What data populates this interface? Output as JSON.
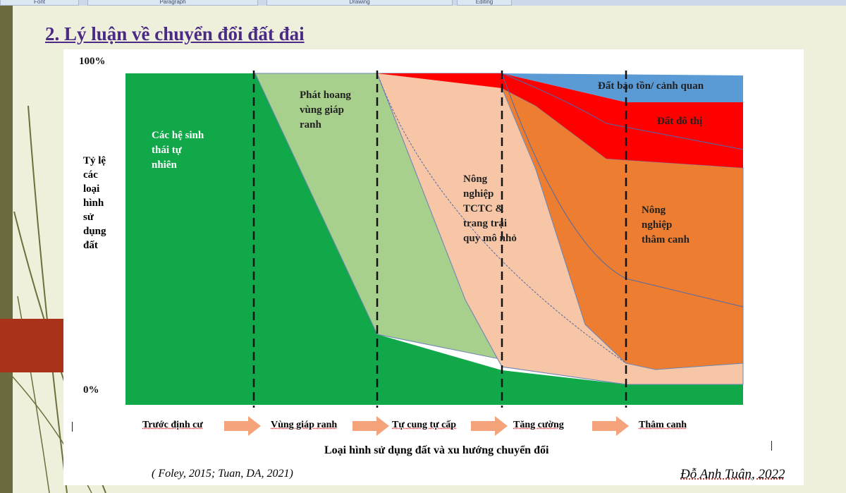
{
  "ribbon": {
    "groups": [
      "Font",
      "Paragraph",
      "Drawing",
      "Editing"
    ]
  },
  "slide": {
    "title": "2. Lý luận về chuyển đổi đất đai",
    "y_top": "100%",
    "y_bottom": "0%",
    "y_axis_label": [
      "Tỷ lệ",
      "các",
      "loại",
      "hình",
      "sử",
      "dụng",
      "đất"
    ],
    "x_axis_label": "Loại hình sử dụng đất và xu hướng chuyển đổi",
    "citation": "( Foley, 2015; Tuan, DA, 2021)",
    "author": "Đỗ Anh Tuân, 2022"
  },
  "areas": {
    "natural": "Các hệ sinh\nthái tự\nnhiên",
    "frontier": "Phát hoang\nvùng giáp\nranh",
    "smallholder": "Nông\nnghiệp\nTCTC &\ntrang trại\nquy mô nhỏ",
    "protected": "Đất bảo tồn/ cảnh quan",
    "urban": "Đất đô thị",
    "intensive": "Nông\nnghiệp\nthâm canh"
  },
  "stages": [
    "Trước  định cư",
    "Vùng giáp ranh",
    "Tự cung tự cấp",
    "Tăng cường",
    "Thâm canh"
  ],
  "colors": {
    "natural": "#11a84a",
    "frontier": "#a8d08d",
    "smallholder": "#f7c6a6",
    "intensive": "#ed7d31",
    "urban": "#ff0000",
    "protected": "#5b9bd5",
    "arrow": "#f4a37a",
    "title": "#4b2a86"
  }
}
